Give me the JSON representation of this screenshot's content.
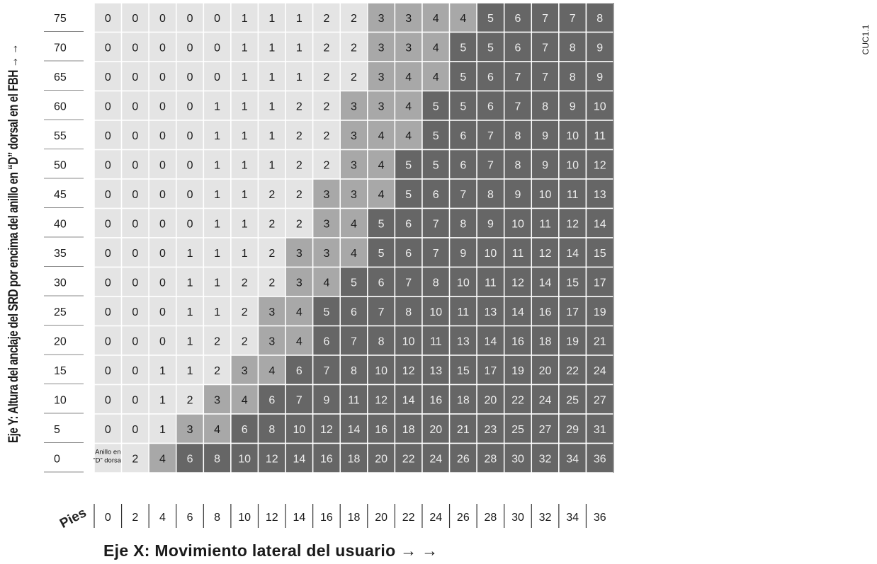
{
  "chart_data": {
    "type": "table",
    "title": "",
    "xlabel": "Eje X:  Movimiento lateral del usuario → →",
    "ylabel": "Eje Y:  Altura del anclaje del SRD por encima del anillo en “D” dorsal en el FBH  → →",
    "x_unit": "Pies",
    "code": "CUC1.1",
    "corner_label": [
      "Anillo en",
      "“D” dorsal"
    ],
    "x": [
      0,
      2,
      4,
      6,
      8,
      10,
      12,
      14,
      16,
      18,
      20,
      22,
      24,
      26,
      28,
      30,
      32,
      34,
      36
    ],
    "y": [
      75,
      70,
      65,
      60,
      55,
      50,
      45,
      40,
      35,
      30,
      25,
      20,
      15,
      10,
      5,
      0
    ],
    "values": [
      [
        0,
        0,
        0,
        0,
        0,
        1,
        1,
        1,
        2,
        2,
        3,
        3,
        4,
        4,
        5,
        6,
        7,
        7,
        8
      ],
      [
        0,
        0,
        0,
        0,
        0,
        1,
        1,
        1,
        2,
        2,
        3,
        3,
        4,
        5,
        5,
        6,
        7,
        8,
        9
      ],
      [
        0,
        0,
        0,
        0,
        0,
        1,
        1,
        1,
        2,
        2,
        3,
        4,
        4,
        5,
        6,
        7,
        7,
        8,
        9
      ],
      [
        0,
        0,
        0,
        0,
        1,
        1,
        1,
        2,
        2,
        3,
        3,
        4,
        5,
        5,
        6,
        7,
        8,
        9,
        10
      ],
      [
        0,
        0,
        0,
        0,
        1,
        1,
        1,
        2,
        2,
        3,
        4,
        4,
        5,
        6,
        7,
        8,
        9,
        10,
        11
      ],
      [
        0,
        0,
        0,
        0,
        1,
        1,
        1,
        2,
        2,
        3,
        4,
        5,
        5,
        6,
        7,
        8,
        9,
        10,
        12
      ],
      [
        0,
        0,
        0,
        0,
        1,
        1,
        2,
        2,
        3,
        3,
        4,
        5,
        6,
        7,
        8,
        9,
        10,
        11,
        13
      ],
      [
        0,
        0,
        0,
        0,
        1,
        1,
        2,
        2,
        3,
        4,
        5,
        6,
        7,
        8,
        9,
        10,
        11,
        12,
        14
      ],
      [
        0,
        0,
        0,
        1,
        1,
        1,
        2,
        3,
        3,
        4,
        5,
        6,
        7,
        9,
        10,
        11,
        12,
        14,
        15
      ],
      [
        0,
        0,
        0,
        1,
        1,
        2,
        2,
        3,
        4,
        5,
        6,
        7,
        8,
        10,
        11,
        12,
        14,
        15,
        17
      ],
      [
        0,
        0,
        0,
        1,
        1,
        2,
        3,
        4,
        5,
        6,
        7,
        8,
        10,
        11,
        13,
        14,
        16,
        17,
        19
      ],
      [
        0,
        0,
        0,
        1,
        2,
        2,
        3,
        4,
        6,
        7,
        8,
        10,
        11,
        13,
        14,
        16,
        18,
        19,
        21
      ],
      [
        0,
        0,
        1,
        1,
        2,
        3,
        4,
        6,
        7,
        8,
        10,
        12,
        13,
        15,
        17,
        19,
        20,
        22,
        24
      ],
      [
        0,
        0,
        1,
        2,
        3,
        4,
        6,
        7,
        9,
        11,
        12,
        14,
        16,
        18,
        20,
        22,
        24,
        25,
        27
      ],
      [
        0,
        0,
        1,
        3,
        4,
        6,
        8,
        10,
        12,
        14,
        16,
        18,
        20,
        21,
        23,
        25,
        27,
        29,
        31
      ],
      [
        null,
        2,
        4,
        6,
        8,
        10,
        12,
        14,
        16,
        18,
        20,
        22,
        24,
        26,
        28,
        30,
        32,
        34,
        36
      ]
    ],
    "shade_levels": [
      [
        1,
        1,
        1,
        1,
        1,
        1,
        1,
        1,
        1,
        1,
        2,
        2,
        2,
        2,
        3,
        3,
        3,
        3,
        3
      ],
      [
        1,
        1,
        1,
        1,
        1,
        1,
        1,
        1,
        1,
        1,
        2,
        2,
        2,
        3,
        3,
        3,
        3,
        3,
        3
      ],
      [
        1,
        1,
        1,
        1,
        1,
        1,
        1,
        1,
        1,
        1,
        2,
        2,
        2,
        3,
        3,
        3,
        3,
        3,
        3
      ],
      [
        1,
        1,
        1,
        1,
        1,
        1,
        1,
        1,
        1,
        2,
        2,
        2,
        3,
        3,
        3,
        3,
        3,
        3,
        3
      ],
      [
        1,
        1,
        1,
        1,
        1,
        1,
        1,
        1,
        1,
        2,
        2,
        2,
        3,
        3,
        3,
        3,
        3,
        3,
        3
      ],
      [
        1,
        1,
        1,
        1,
        1,
        1,
        1,
        1,
        1,
        2,
        2,
        3,
        3,
        3,
        3,
        3,
        3,
        3,
        3
      ],
      [
        1,
        1,
        1,
        1,
        1,
        1,
        1,
        1,
        2,
        2,
        2,
        3,
        3,
        3,
        3,
        3,
        3,
        3,
        3
      ],
      [
        1,
        1,
        1,
        1,
        1,
        1,
        1,
        1,
        2,
        2,
        3,
        3,
        3,
        3,
        3,
        3,
        3,
        3,
        3
      ],
      [
        1,
        1,
        1,
        1,
        1,
        1,
        1,
        2,
        2,
        2,
        3,
        3,
        3,
        3,
        3,
        3,
        3,
        3,
        3
      ],
      [
        1,
        1,
        1,
        1,
        1,
        1,
        1,
        2,
        2,
        3,
        3,
        3,
        3,
        3,
        3,
        3,
        3,
        3,
        3
      ],
      [
        1,
        1,
        1,
        1,
        1,
        1,
        2,
        2,
        3,
        3,
        3,
        3,
        3,
        3,
        3,
        3,
        3,
        3,
        3
      ],
      [
        1,
        1,
        1,
        1,
        1,
        1,
        2,
        2,
        3,
        3,
        3,
        3,
        3,
        3,
        3,
        3,
        3,
        3,
        3
      ],
      [
        1,
        1,
        1,
        1,
        1,
        2,
        2,
        3,
        3,
        3,
        3,
        3,
        3,
        3,
        3,
        3,
        3,
        3,
        3
      ],
      [
        1,
        1,
        1,
        1,
        2,
        2,
        3,
        3,
        3,
        3,
        3,
        3,
        3,
        3,
        3,
        3,
        3,
        3,
        3
      ],
      [
        1,
        1,
        1,
        2,
        2,
        3,
        3,
        3,
        3,
        3,
        3,
        3,
        3,
        3,
        3,
        3,
        3,
        3,
        3
      ],
      [
        1,
        1,
        2,
        3,
        3,
        3,
        3,
        3,
        3,
        3,
        3,
        3,
        3,
        3,
        3,
        3,
        3,
        3,
        3
      ]
    ],
    "colors": {
      "light": "#e4e4e4",
      "medium": "#a8a8a8",
      "dark": "#666666",
      "text_dark": "#1a1a1a",
      "text_light": "#eeeeee",
      "grid": "#ffffff",
      "frame": "#555555"
    }
  }
}
